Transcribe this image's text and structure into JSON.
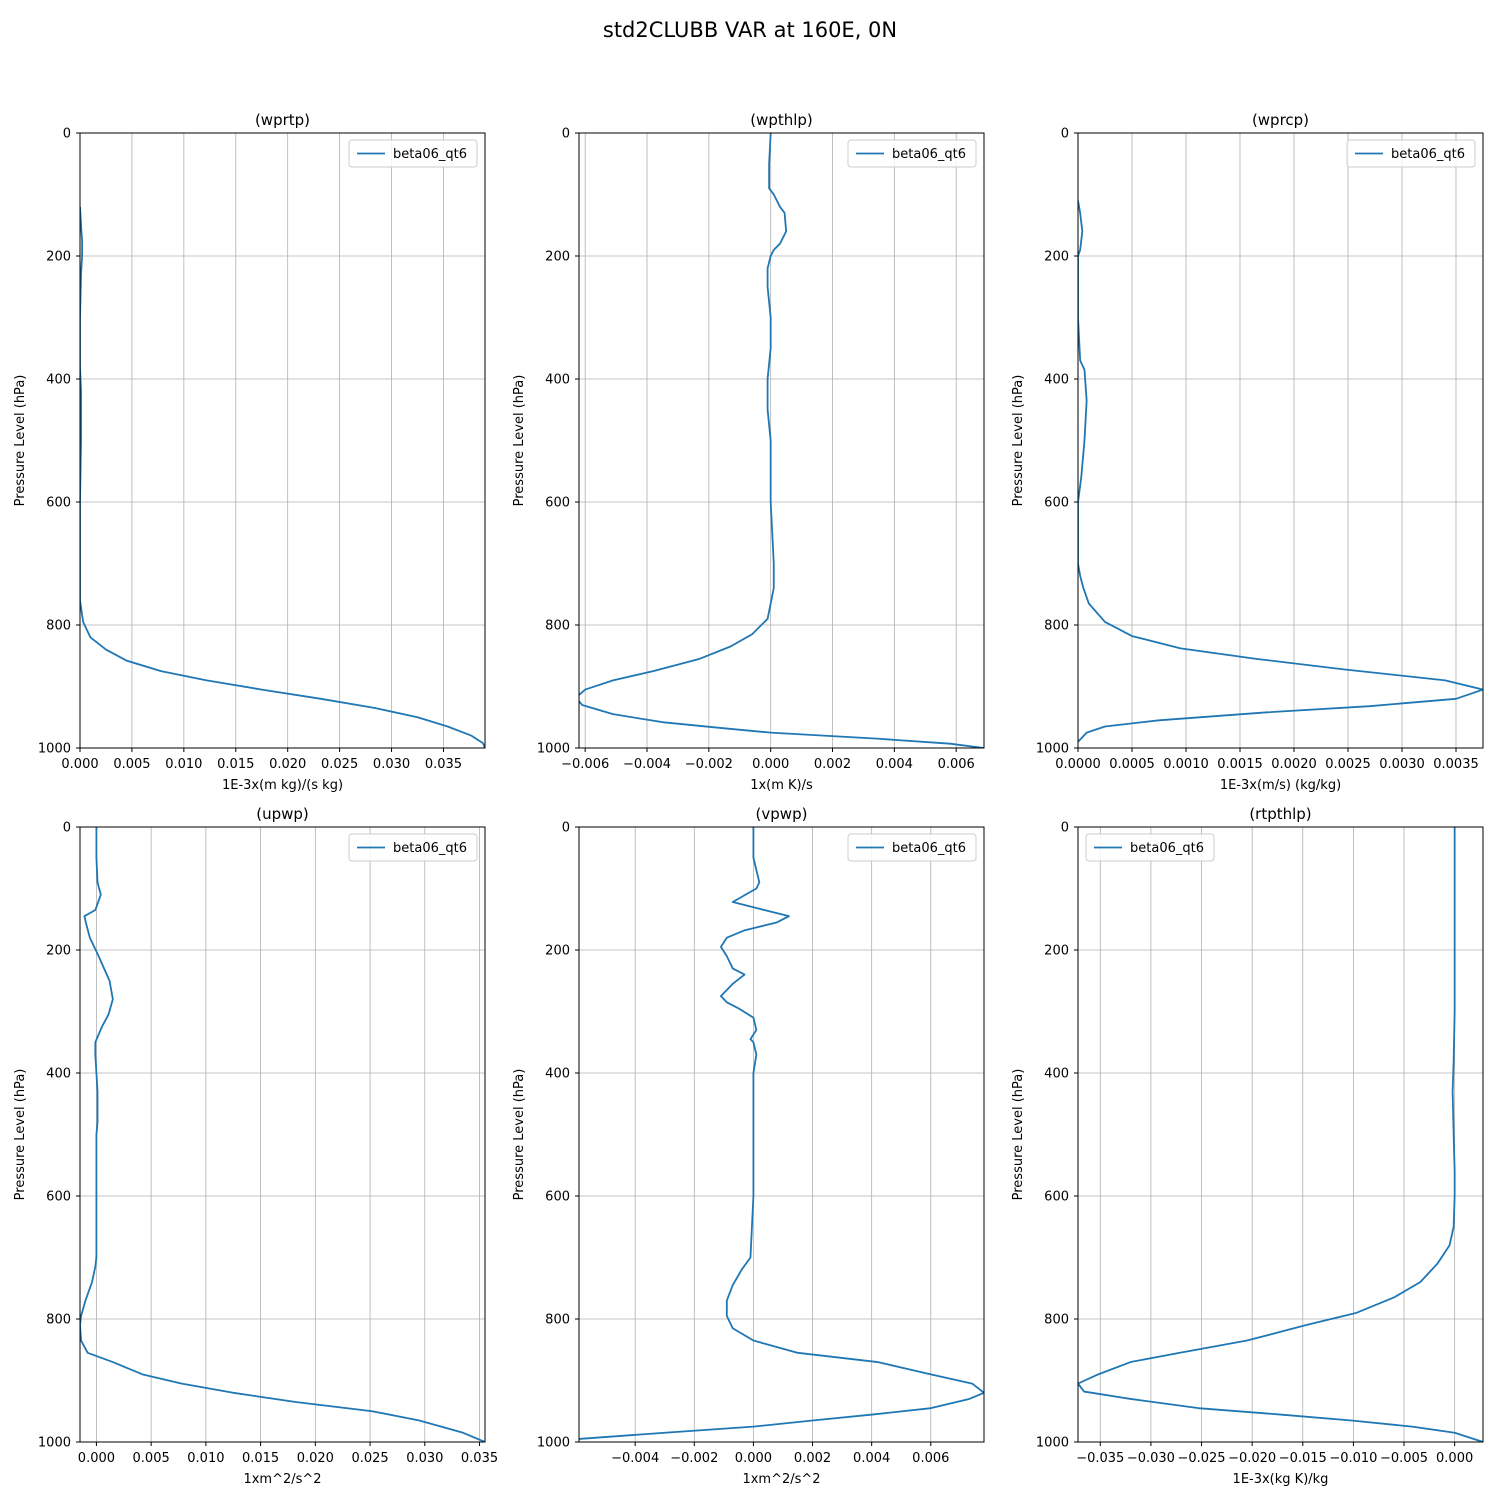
{
  "figure": {
    "title": "std2CLUBB VAR at 160E, 0N"
  },
  "chart_data": [
    {
      "type": "line",
      "title": "(wprtp)",
      "xlabel": "1E-3x(m kg)/(s kg)",
      "ylabel": "Pressure Level (hPa)",
      "xlim": [
        0,
        0.039
      ],
      "ylim": [
        1000,
        0
      ],
      "xticks": [
        0,
        0.005,
        0.01,
        0.015,
        0.02,
        0.025,
        0.03,
        0.035
      ],
      "xtick_labels": [
        "0.000",
        "0.005",
        "0.010",
        "0.015",
        "0.020",
        "0.025",
        "0.030",
        "0.035"
      ],
      "yticks": [
        0,
        200,
        400,
        600,
        800,
        1000
      ],
      "ytick_labels": [
        "0",
        "200",
        "400",
        "600",
        "800",
        "1000"
      ],
      "grid": true,
      "legend_position": "upper-right",
      "color": "#1f77b4",
      "series": [
        {
          "name": "beta06_qt6",
          "x": [
            0.0,
            0.0001,
            0.0002,
            0.0002,
            0.0001,
            0.0,
            0.0,
            0.0001,
            0.0001,
            0.0,
            0.0,
            0.0,
            0.0003,
            0.001,
            0.0025,
            0.0045,
            0.0078,
            0.0122,
            0.0175,
            0.0232,
            0.0284,
            0.0325,
            0.0354,
            0.0377,
            0.0388,
            0.039
          ],
          "y": [
            120,
            150,
            175,
            200,
            230,
            300,
            380,
            420,
            500,
            600,
            700,
            760,
            795,
            820,
            840,
            858,
            875,
            890,
            905,
            920,
            935,
            950,
            965,
            980,
            992,
            1000
          ]
        }
      ]
    },
    {
      "type": "line",
      "title": "(wpthlp)",
      "xlabel": "1x(m K)/s",
      "ylabel": "Pressure Level (hPa)",
      "xlim": [
        -0.0062,
        0.0069
      ],
      "ylim": [
        1000,
        0
      ],
      "xticks": [
        -0.006,
        -0.004,
        -0.002,
        0,
        0.002,
        0.004,
        0.006
      ],
      "xtick_labels": [
        "−0.006",
        "−0.004",
        "−0.002",
        "0.000",
        "0.002",
        "0.004",
        "0.006"
      ],
      "yticks": [
        0,
        200,
        400,
        600,
        800,
        1000
      ],
      "ytick_labels": [
        "0",
        "200",
        "400",
        "600",
        "800",
        "1000"
      ],
      "grid": true,
      "legend_position": "upper-right",
      "color": "#1f77b4",
      "series": [
        {
          "name": "beta06_qt6",
          "x": [
            0.0,
            -5e-05,
            -5e-05,
            0.0001,
            0.0002,
            0.0003,
            0.00045,
            0.0005,
            0.0003,
            0.0001,
            0.0,
            -0.0001,
            -0.0001,
            0.0,
            0.0,
            -0.0001,
            -0.0001,
            0.0,
            0.0,
            0.0001,
            0.0001,
            -0.0001,
            -0.0006,
            -0.0013,
            -0.0023,
            -0.0038,
            -0.0051,
            -0.006,
            -0.0063,
            -0.0061,
            -0.0051,
            -0.0035,
            -0.0015,
            0.0,
            0.0035,
            0.0058,
            0.0069
          ],
          "y": [
            0,
            50,
            90,
            100,
            110,
            120,
            130,
            160,
            180,
            190,
            200,
            220,
            250,
            300,
            350,
            400,
            450,
            500,
            600,
            700,
            740,
            790,
            815,
            835,
            855,
            875,
            890,
            905,
            918,
            930,
            945,
            958,
            968,
            975,
            985,
            993,
            1000
          ]
        }
      ]
    },
    {
      "type": "line",
      "title": "(wprcp)",
      "xlabel": "1E-3x(m/s) (kg/kg)",
      "ylabel": "Pressure Level (hPa)",
      "xlim": [
        0,
        0.00375
      ],
      "ylim": [
        1000,
        0
      ],
      "xticks": [
        0,
        0.0005,
        0.001,
        0.0015,
        0.002,
        0.0025,
        0.003,
        0.0035
      ],
      "xtick_labels": [
        "0.0000",
        "0.0005",
        "0.0010",
        "0.0015",
        "0.0020",
        "0.0025",
        "0.0030",
        "0.0035"
      ],
      "yticks": [
        0,
        200,
        400,
        600,
        800,
        1000
      ],
      "ytick_labels": [
        "0",
        "200",
        "400",
        "600",
        "800",
        "1000"
      ],
      "grid": true,
      "legend_position": "upper-right",
      "color": "#1f77b4",
      "series": [
        {
          "name": "beta06_qt6",
          "x": [
            0.0,
            2e-05,
            4e-05,
            2e-05,
            0.0,
            0.0,
            2e-05,
            6e-05,
            8e-05,
            6e-05,
            3e-05,
            0.0,
            0.0,
            2e-05,
            5e-05,
            0.0001,
            0.00025,
            0.0005,
            0.00095,
            0.00165,
            0.00245,
            0.0034,
            0.00375,
            0.0035,
            0.0027,
            0.00175,
            0.00075,
            0.00025,
            8e-05,
            0.0
          ],
          "y": [
            110,
            130,
            160,
            190,
            200,
            300,
            370,
            385,
            435,
            500,
            560,
            600,
            700,
            720,
            740,
            765,
            795,
            818,
            838,
            855,
            872,
            890,
            905,
            920,
            932,
            942,
            955,
            965,
            975,
            990
          ]
        }
      ]
    },
    {
      "type": "line",
      "title": "(upwp)",
      "xlabel": "1xm^2/s^2",
      "ylabel": "Pressure Level (hPa)",
      "xlim": [
        -0.0015,
        0.0355
      ],
      "ylim": [
        1000,
        0
      ],
      "xticks": [
        0,
        0.005,
        0.01,
        0.015,
        0.02,
        0.025,
        0.03,
        0.035
      ],
      "xtick_labels": [
        "0.000",
        "0.005",
        "0.010",
        "0.015",
        "0.020",
        "0.025",
        "0.030",
        "0.035"
      ],
      "yticks": [
        0,
        200,
        400,
        600,
        800,
        1000
      ],
      "ytick_labels": [
        "0",
        "200",
        "400",
        "600",
        "800",
        "1000"
      ],
      "grid": true,
      "legend_position": "upper-right",
      "color": "#1f77b4",
      "series": [
        {
          "name": "beta06_qt6",
          "x": [
            0.0,
            0.0,
            0.0001,
            0.0004,
            -0.0001,
            -0.0011,
            -0.0009,
            -0.0006,
            -0.0002,
            0.0002,
            0.0007,
            0.0012,
            0.0015,
            0.0011,
            0.0005,
            -0.0001,
            -0.0001,
            0.0,
            0.0001,
            0.0001,
            0.0,
            0.0,
            0.0,
            0.0,
            -0.0001,
            -0.0004,
            -0.001,
            -0.0014,
            -0.0015,
            -0.0014,
            -0.0008,
            0.0015,
            0.0042,
            0.0078,
            0.0125,
            0.0182,
            0.0252,
            0.0295,
            0.0335,
            0.0355
          ],
          "y": [
            0,
            50,
            90,
            110,
            135,
            145,
            160,
            180,
            195,
            210,
            230,
            250,
            280,
            305,
            325,
            350,
            370,
            400,
            430,
            480,
            500,
            560,
            640,
            700,
            715,
            740,
            770,
            795,
            810,
            835,
            855,
            870,
            890,
            905,
            920,
            935,
            950,
            965,
            985,
            1000
          ]
        }
      ]
    },
    {
      "type": "line",
      "title": "(vpwp)",
      "xlabel": "1xm^2/s^2",
      "ylabel": "Pressure Level (hPa)",
      "xlim": [
        -0.0059,
        0.0078
      ],
      "ylim": [
        1000,
        0
      ],
      "xticks": [
        -0.004,
        -0.002,
        0,
        0.002,
        0.004,
        0.006
      ],
      "xtick_labels": [
        "−0.004",
        "−0.002",
        "0.000",
        "0.002",
        "0.004",
        "0.006"
      ],
      "yticks": [
        0,
        200,
        400,
        600,
        800,
        1000
      ],
      "ytick_labels": [
        "0",
        "200",
        "400",
        "600",
        "800",
        "1000"
      ],
      "grid": true,
      "legend_position": "upper-right",
      "color": "#1f77b4",
      "series": [
        {
          "name": "beta06_qt6",
          "x": [
            0.0,
            0.0,
            0.00015,
            0.0002,
            0.0001,
            -0.0007,
            0.0012,
            0.0008,
            -0.0003,
            -0.0009,
            -0.0011,
            -0.0009,
            -0.0007,
            -0.0003,
            -0.0007,
            -0.0011,
            -0.0009,
            -0.0005,
            0.0,
            0.0001,
            -0.0001,
            0.0,
            0.0001,
            0.0,
            0.0,
            0.0,
            0.0,
            0.0,
            -0.0001,
            -0.0004,
            -0.0007,
            -0.0009,
            -0.0009,
            -0.0007,
            0.0,
            0.0015,
            0.0042,
            0.006,
            0.0074,
            0.0078,
            0.0073,
            0.006,
            0.0041,
            0.002,
            0.0,
            -0.003,
            -0.0059
          ],
          "y": [
            0,
            50,
            80,
            90,
            100,
            122,
            145,
            155,
            168,
            180,
            195,
            210,
            230,
            240,
            255,
            275,
            285,
            295,
            310,
            330,
            345,
            350,
            370,
            400,
            430,
            490,
            500,
            600,
            700,
            720,
            745,
            770,
            795,
            815,
            835,
            855,
            870,
            890,
            905,
            920,
            930,
            945,
            955,
            965,
            975,
            985,
            995
          ]
        }
      ]
    },
    {
      "type": "line",
      "title": "(rtpthlp)",
      "xlabel": "1E-3x(kg K)/kg",
      "ylabel": "Pressure Level (hPa)",
      "xlim": [
        -0.0372,
        0.0028
      ],
      "ylim": [
        1000,
        0
      ],
      "xticks": [
        -0.035,
        -0.03,
        -0.025,
        -0.02,
        -0.015,
        -0.01,
        -0.005,
        0
      ],
      "xtick_labels": [
        "−0.035",
        "−0.030",
        "−0.025",
        "−0.020",
        "−0.015",
        "−0.010",
        "−0.005",
        "0.000"
      ],
      "yticks": [
        0,
        200,
        400,
        600,
        800,
        1000
      ],
      "ytick_labels": [
        "0",
        "200",
        "400",
        "600",
        "800",
        "1000"
      ],
      "grid": true,
      "legend_position": "upper-left",
      "color": "#1f77b4",
      "series": [
        {
          "name": "beta06_qt6",
          "x": [
            0.0,
            0.0,
            0.0,
            0.0,
            -0.0001,
            -0.0002,
            -0.0001,
            0.0,
            0.0,
            -0.0001,
            -0.0005,
            -0.0017,
            -0.0034,
            -0.006,
            -0.0097,
            -0.0147,
            -0.0205,
            -0.0272,
            -0.032,
            -0.0352,
            -0.0372,
            -0.0366,
            -0.032,
            -0.0253,
            -0.0175,
            -0.0102,
            -0.0042,
            0.0,
            0.0028
          ],
          "y": [
            0,
            100,
            200,
            300,
            380,
            430,
            500,
            560,
            600,
            650,
            680,
            710,
            740,
            765,
            790,
            810,
            835,
            855,
            870,
            890,
            905,
            918,
            930,
            945,
            955,
            965,
            975,
            985,
            1000
          ]
        }
      ]
    }
  ]
}
